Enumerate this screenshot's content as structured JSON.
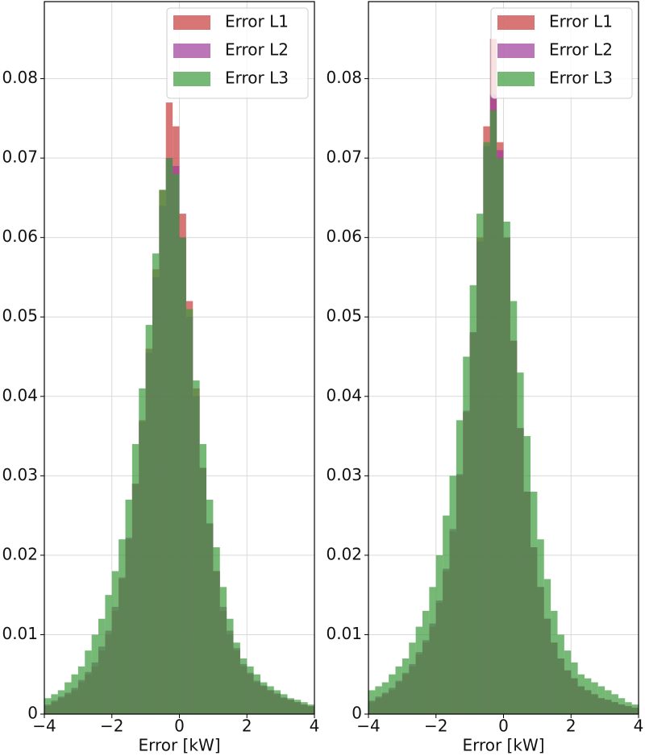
{
  "chart_data": [
    {
      "type": "histogram",
      "xlabel": "Error [kW]",
      "bins": [
        -4,
        -3.8,
        -3.6,
        -3.4,
        -3.2,
        -3,
        -2.8,
        -2.6,
        -2.4,
        -2.2,
        -2,
        -1.8,
        -1.6,
        -1.4,
        -1.2,
        -1,
        -0.8,
        -0.6,
        -0.4,
        -0.2,
        0,
        0.2,
        0.4,
        0.6,
        0.8,
        1,
        1.2,
        1.4,
        1.6,
        1.8,
        2,
        2.2,
        2.4,
        2.6,
        2.8,
        3,
        3.2,
        3.4,
        3.6,
        3.8,
        4
      ],
      "series": [
        {
          "name": "Error L1",
          "color": "#c83c3c",
          "values": [
            0.001,
            0.0015,
            0.002,
            0.0025,
            0.003,
            0.004,
            0.005,
            0.006,
            0.008,
            0.01,
            0.013,
            0.017,
            0.022,
            0.029,
            0.037,
            0.046,
            0.056,
            0.066,
            0.077,
            0.074,
            0.063,
            0.052,
            0.041,
            0.031,
            0.024,
            0.018,
            0.013,
            0.01,
            0.008,
            0.006,
            0.005,
            0.004,
            0.0035,
            0.003,
            0.0025,
            0.002,
            0.0018,
            0.0015,
            0.0012,
            0.001
          ]
        },
        {
          "name": "Error L2",
          "color": "#9c3c98",
          "values": [
            0.0012,
            0.0017,
            0.0022,
            0.0027,
            0.0033,
            0.0043,
            0.0053,
            0.0065,
            0.0085,
            0.0105,
            0.0135,
            0.0172,
            0.0222,
            0.029,
            0.0368,
            0.0455,
            0.055,
            0.064,
            0.07,
            0.069,
            0.06,
            0.05,
            0.04,
            0.031,
            0.024,
            0.018,
            0.0135,
            0.0105,
            0.0083,
            0.0063,
            0.0052,
            0.0042,
            0.0036,
            0.003,
            0.0026,
            0.0021,
            0.0018,
            0.0015,
            0.0012,
            0.001
          ]
        },
        {
          "name": "Error L3",
          "color": "#3c9a3c",
          "values": [
            0.002,
            0.0025,
            0.003,
            0.004,
            0.005,
            0.006,
            0.008,
            0.01,
            0.012,
            0.015,
            0.018,
            0.022,
            0.027,
            0.034,
            0.041,
            0.049,
            0.058,
            0.066,
            0.07,
            0.068,
            0.06,
            0.051,
            0.042,
            0.034,
            0.027,
            0.021,
            0.016,
            0.012,
            0.009,
            0.007,
            0.006,
            0.005,
            0.004,
            0.0035,
            0.003,
            0.0025,
            0.002,
            0.0018,
            0.0015,
            0.0012
          ]
        }
      ],
      "xlim": [
        -4,
        4
      ],
      "ylim": [
        0,
        0.0897
      ],
      "xticks": [
        {
          "value": -4,
          "label": "−4"
        },
        {
          "value": -2,
          "label": "−2"
        },
        0,
        2,
        4
      ],
      "yticks": [
        0,
        0.01,
        0.02,
        0.03,
        0.04,
        0.05,
        0.06,
        0.07,
        0.08
      ],
      "grid": true,
      "legend": "upper right"
    },
    {
      "type": "histogram",
      "xlabel": "Error [kW]",
      "bins": [
        -4,
        -3.8,
        -3.6,
        -3.4,
        -3.2,
        -3,
        -2.8,
        -2.6,
        -2.4,
        -2.2,
        -2,
        -1.8,
        -1.6,
        -1.4,
        -1.2,
        -1,
        -0.8,
        -0.6,
        -0.4,
        -0.2,
        0,
        0.2,
        0.4,
        0.6,
        0.8,
        1,
        1.2,
        1.4,
        1.6,
        1.8,
        2,
        2.2,
        2.4,
        2.6,
        2.8,
        3,
        3.2,
        3.4,
        3.6,
        3.8,
        4
      ],
      "series": [
        {
          "name": "Error L1",
          "color": "#c83c3c",
          "values": [
            0.0015,
            0.002,
            0.0025,
            0.003,
            0.004,
            0.005,
            0.006,
            0.0075,
            0.009,
            0.011,
            0.014,
            0.018,
            0.023,
            0.03,
            0.038,
            0.048,
            0.06,
            0.074,
            0.085,
            0.072,
            0.06,
            0.047,
            0.036,
            0.028,
            0.021,
            0.016,
            0.012,
            0.009,
            0.007,
            0.0055,
            0.0045,
            0.0035,
            0.003,
            0.0025,
            0.002,
            0.0018,
            0.0015,
            0.0012,
            0.001,
            0.0008
          ]
        },
        {
          "name": "Error L2",
          "color": "#9c3c98",
          "values": [
            0.0017,
            0.0022,
            0.0027,
            0.0033,
            0.0042,
            0.0052,
            0.0063,
            0.0078,
            0.0093,
            0.0114,
            0.0143,
            0.0183,
            0.0233,
            0.0302,
            0.0382,
            0.0481,
            0.0595,
            0.0715,
            0.078,
            0.071,
            0.06,
            0.047,
            0.036,
            0.028,
            0.021,
            0.016,
            0.012,
            0.009,
            0.007,
            0.0055,
            0.0045,
            0.0035,
            0.003,
            0.0025,
            0.002,
            0.0018,
            0.0015,
            0.0012,
            0.001,
            0.0008
          ]
        },
        {
          "name": "Error L3",
          "color": "#3c9a3c",
          "values": [
            0.003,
            0.0035,
            0.004,
            0.005,
            0.006,
            0.007,
            0.009,
            0.011,
            0.013,
            0.016,
            0.02,
            0.025,
            0.03,
            0.037,
            0.045,
            0.054,
            0.063,
            0.072,
            0.076,
            0.07,
            0.062,
            0.052,
            0.043,
            0.035,
            0.028,
            0.022,
            0.017,
            0.013,
            0.01,
            0.008,
            0.0065,
            0.005,
            0.0045,
            0.004,
            0.0035,
            0.003,
            0.0025,
            0.002,
            0.0015,
            0.0012
          ]
        }
      ],
      "xlim": [
        -4,
        4
      ],
      "ylim": [
        0,
        0.0897
      ],
      "xticks": [
        {
          "value": -4,
          "label": "−4"
        },
        {
          "value": -2,
          "label": "−2"
        },
        0,
        2,
        4
      ],
      "yticks": [
        0,
        0.01,
        0.02,
        0.03,
        0.04,
        0.05,
        0.06,
        0.07,
        0.08
      ],
      "grid": true,
      "legend": "upper right"
    }
  ]
}
